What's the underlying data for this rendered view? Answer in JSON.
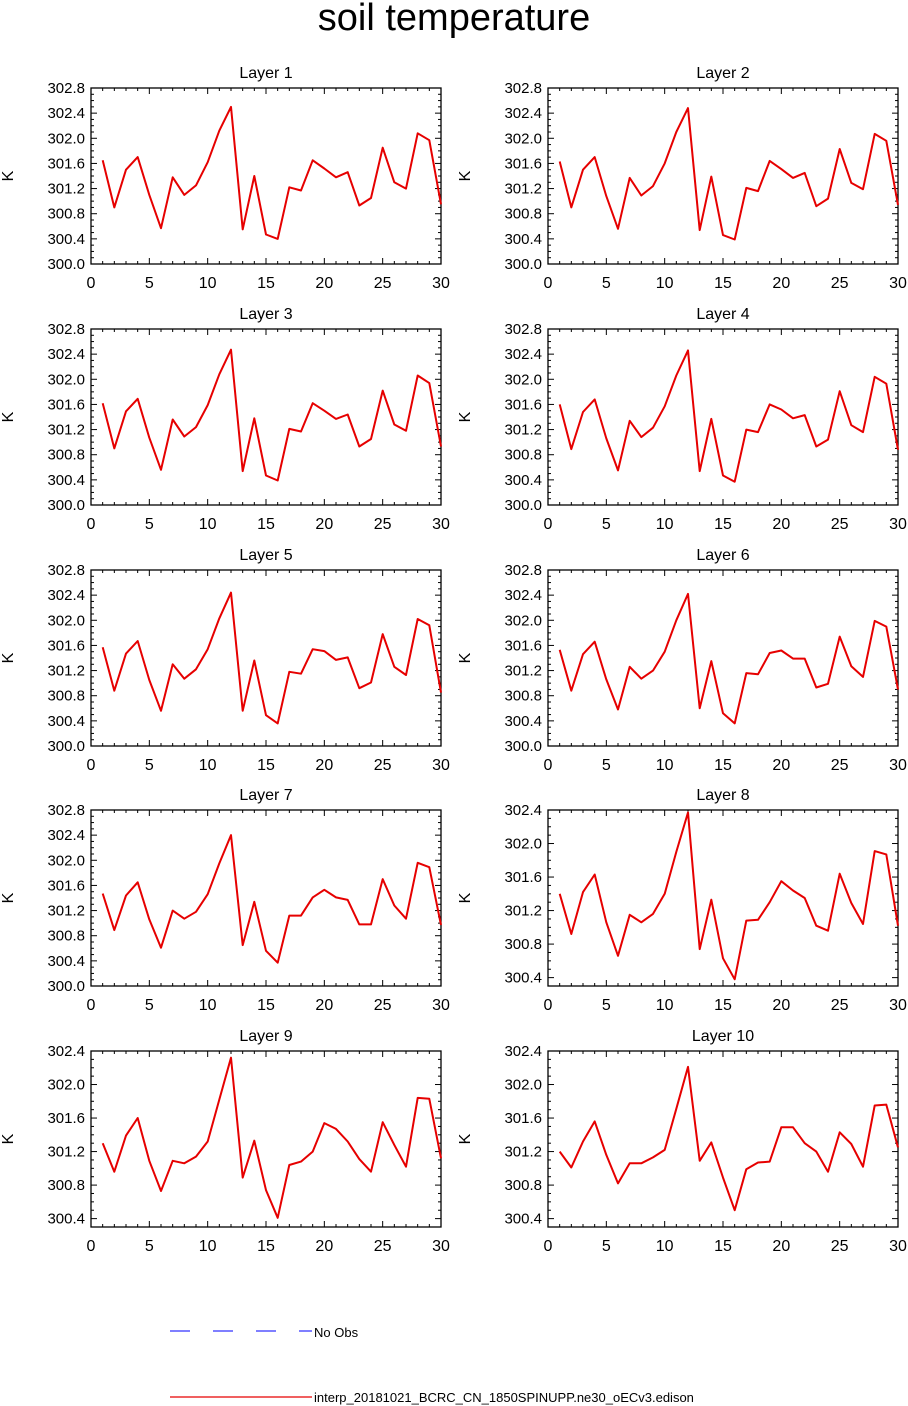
{
  "title": "soil temperature",
  "colors": {
    "model_line": "#e60000",
    "obs_line": "#3333ff",
    "axes": "#000000"
  },
  "legend": {
    "position": "bottom",
    "obs_label": "No Obs",
    "model_label": "interp_20181021_BCRC_CN_1850SPINUPP.ne30_oECv3.edison"
  },
  "chart_data": [
    {
      "type": "line",
      "title": "Layer 1",
      "ylabel": "K",
      "ylim": [
        300.0,
        302.8
      ],
      "yticks": [
        "300.0",
        "300.4",
        "300.8",
        "301.2",
        "301.6",
        "302.0",
        "302.4",
        "302.8"
      ],
      "xlim": [
        0,
        30
      ],
      "xticks": [
        "0",
        "5",
        "10",
        "15",
        "20",
        "25",
        "30"
      ],
      "x": [
        1,
        2,
        3,
        4,
        5,
        6,
        7,
        8,
        9,
        10,
        11,
        12,
        13,
        14,
        15,
        16,
        17,
        18,
        19,
        20,
        21,
        22,
        23,
        24,
        25,
        26,
        27,
        28,
        29,
        30
      ],
      "series": [
        {
          "values": [
            301.65,
            300.9,
            301.5,
            301.7,
            301.1,
            300.57,
            301.38,
            301.1,
            301.25,
            301.62,
            302.12,
            302.5,
            300.55,
            301.4,
            300.47,
            300.4,
            301.22,
            301.17,
            301.65,
            301.52,
            301.38,
            301.46,
            300.93,
            301.05,
            301.85,
            301.3,
            301.2,
            302.08,
            301.97,
            300.95
          ]
        }
      ]
    },
    {
      "type": "line",
      "title": "Layer 2",
      "ylabel": "K",
      "ylim": [
        300.0,
        302.8
      ],
      "yticks": [
        "300.0",
        "300.4",
        "300.8",
        "301.2",
        "301.6",
        "302.0",
        "302.4",
        "302.8"
      ],
      "xlim": [
        0,
        30
      ],
      "xticks": [
        "0",
        "5",
        "10",
        "15",
        "20",
        "25",
        "30"
      ],
      "x": [
        1,
        2,
        3,
        4,
        5,
        6,
        7,
        8,
        9,
        10,
        11,
        12,
        13,
        14,
        15,
        16,
        17,
        18,
        19,
        20,
        21,
        22,
        23,
        24,
        25,
        26,
        27,
        28,
        29,
        30
      ],
      "series": [
        {
          "values": [
            301.63,
            300.9,
            301.5,
            301.7,
            301.08,
            300.56,
            301.37,
            301.09,
            301.24,
            301.6,
            302.1,
            302.48,
            300.54,
            301.39,
            300.46,
            300.39,
            301.21,
            301.16,
            301.64,
            301.51,
            301.37,
            301.45,
            300.92,
            301.04,
            301.83,
            301.29,
            301.19,
            302.07,
            301.96,
            300.94
          ]
        }
      ]
    },
    {
      "type": "line",
      "title": "Layer 3",
      "ylabel": "K",
      "ylim": [
        300.0,
        302.8
      ],
      "yticks": [
        "300.0",
        "300.4",
        "300.8",
        "301.2",
        "301.6",
        "302.0",
        "302.4",
        "302.8"
      ],
      "xlim": [
        0,
        30
      ],
      "xticks": [
        "0",
        "5",
        "10",
        "15",
        "20",
        "25",
        "30"
      ],
      "x": [
        1,
        2,
        3,
        4,
        5,
        6,
        7,
        8,
        9,
        10,
        11,
        12,
        13,
        14,
        15,
        16,
        17,
        18,
        19,
        20,
        21,
        22,
        23,
        24,
        25,
        26,
        27,
        28,
        29,
        30
      ],
      "series": [
        {
          "values": [
            301.62,
            300.9,
            301.49,
            301.69,
            301.07,
            300.56,
            301.36,
            301.09,
            301.24,
            301.59,
            302.08,
            302.47,
            300.54,
            301.38,
            300.47,
            300.39,
            301.21,
            301.17,
            301.62,
            301.5,
            301.37,
            301.44,
            300.93,
            301.05,
            301.82,
            301.28,
            301.18,
            302.06,
            301.94,
            300.93
          ]
        }
      ]
    },
    {
      "type": "line",
      "title": "Layer 4",
      "ylabel": "K",
      "ylim": [
        300.0,
        302.8
      ],
      "yticks": [
        "300.0",
        "300.4",
        "300.8",
        "301.2",
        "301.6",
        "302.0",
        "302.4",
        "302.8"
      ],
      "xlim": [
        0,
        30
      ],
      "xticks": [
        "0",
        "5",
        "10",
        "15",
        "20",
        "25",
        "30"
      ],
      "x": [
        1,
        2,
        3,
        4,
        5,
        6,
        7,
        8,
        9,
        10,
        11,
        12,
        13,
        14,
        15,
        16,
        17,
        18,
        19,
        20,
        21,
        22,
        23,
        24,
        25,
        26,
        27,
        28,
        29,
        30
      ],
      "series": [
        {
          "values": [
            301.6,
            300.89,
            301.48,
            301.68,
            301.06,
            300.55,
            301.34,
            301.08,
            301.23,
            301.57,
            302.06,
            302.46,
            300.54,
            301.37,
            300.47,
            300.37,
            301.2,
            301.16,
            301.6,
            301.52,
            301.38,
            301.43,
            300.93,
            301.04,
            301.81,
            301.27,
            301.16,
            302.04,
            301.93,
            300.88
          ]
        }
      ]
    },
    {
      "type": "line",
      "title": "Layer 5",
      "ylabel": "K",
      "ylim": [
        300.0,
        302.8
      ],
      "yticks": [
        "300.0",
        "300.4",
        "300.8",
        "301.2",
        "301.6",
        "302.0",
        "302.4",
        "302.8"
      ],
      "xlim": [
        0,
        30
      ],
      "xticks": [
        "0",
        "5",
        "10",
        "15",
        "20",
        "25",
        "30"
      ],
      "x": [
        1,
        2,
        3,
        4,
        5,
        6,
        7,
        8,
        9,
        10,
        11,
        12,
        13,
        14,
        15,
        16,
        17,
        18,
        19,
        20,
        21,
        22,
        23,
        24,
        25,
        26,
        27,
        28,
        29,
        30
      ],
      "series": [
        {
          "values": [
            301.57,
            300.88,
            301.47,
            301.67,
            301.05,
            300.56,
            301.3,
            301.07,
            301.22,
            301.54,
            302.03,
            302.44,
            300.56,
            301.36,
            300.49,
            300.36,
            301.18,
            301.15,
            301.54,
            301.51,
            301.37,
            301.41,
            300.92,
            301.01,
            301.78,
            301.26,
            301.13,
            302.02,
            301.92,
            300.85
          ]
        }
      ]
    },
    {
      "type": "line",
      "title": "Layer 6",
      "ylabel": "K",
      "ylim": [
        300.0,
        302.8
      ],
      "yticks": [
        "300.0",
        "300.4",
        "300.8",
        "301.2",
        "301.6",
        "302.0",
        "302.4",
        "302.8"
      ],
      "xlim": [
        0,
        30
      ],
      "xticks": [
        "0",
        "5",
        "10",
        "15",
        "20",
        "25",
        "30"
      ],
      "x": [
        1,
        2,
        3,
        4,
        5,
        6,
        7,
        8,
        9,
        10,
        11,
        12,
        13,
        14,
        15,
        16,
        17,
        18,
        19,
        20,
        21,
        22,
        23,
        24,
        25,
        26,
        27,
        28,
        29,
        30
      ],
      "series": [
        {
          "values": [
            301.53,
            300.88,
            301.46,
            301.66,
            301.06,
            300.58,
            301.26,
            301.07,
            301.2,
            301.5,
            302.0,
            302.42,
            300.6,
            301.35,
            300.52,
            300.36,
            301.16,
            301.14,
            301.48,
            301.52,
            301.39,
            301.39,
            300.93,
            300.99,
            301.74,
            301.27,
            301.1,
            301.99,
            301.9,
            300.9
          ]
        }
      ]
    },
    {
      "type": "line",
      "title": "Layer 7",
      "ylabel": "K",
      "ylim": [
        300.0,
        302.8
      ],
      "yticks": [
        "300.0",
        "300.4",
        "300.8",
        "301.2",
        "301.6",
        "302.0",
        "302.4",
        "302.8"
      ],
      "xlim": [
        0,
        30
      ],
      "xticks": [
        "0",
        "5",
        "10",
        "15",
        "20",
        "25",
        "30"
      ],
      "x": [
        1,
        2,
        3,
        4,
        5,
        6,
        7,
        8,
        9,
        10,
        11,
        12,
        13,
        14,
        15,
        16,
        17,
        18,
        19,
        20,
        21,
        22,
        23,
        24,
        25,
        26,
        27,
        28,
        29,
        30
      ],
      "series": [
        {
          "values": [
            301.47,
            300.89,
            301.44,
            301.65,
            301.06,
            300.61,
            301.2,
            301.07,
            301.18,
            301.46,
            301.95,
            302.4,
            300.65,
            301.34,
            300.56,
            300.37,
            301.12,
            301.12,
            301.41,
            301.53,
            301.41,
            301.37,
            300.98,
            300.98,
            301.7,
            301.28,
            301.07,
            301.96,
            301.89,
            300.97
          ]
        }
      ]
    },
    {
      "type": "line",
      "title": "Layer 8",
      "ylabel": "K",
      "ylim": [
        300.3,
        302.4
      ],
      "yticks": [
        "300.4",
        "300.8",
        "301.2",
        "301.6",
        "302.0",
        "302.4"
      ],
      "xlim": [
        0,
        30
      ],
      "xticks": [
        "0",
        "5",
        "10",
        "15",
        "20",
        "25",
        "30"
      ],
      "x": [
        1,
        2,
        3,
        4,
        5,
        6,
        7,
        8,
        9,
        10,
        11,
        12,
        13,
        14,
        15,
        16,
        17,
        18,
        19,
        20,
        21,
        22,
        23,
        24,
        25,
        26,
        27,
        28,
        29,
        30
      ],
      "series": [
        {
          "values": [
            301.4,
            300.92,
            301.42,
            301.63,
            301.06,
            300.66,
            301.15,
            301.06,
            301.16,
            301.4,
            301.9,
            302.37,
            300.74,
            301.33,
            300.63,
            300.38,
            301.08,
            301.09,
            301.3,
            301.55,
            301.44,
            301.35,
            301.02,
            300.96,
            301.64,
            301.29,
            301.04,
            301.91,
            301.87,
            301.02
          ]
        }
      ]
    },
    {
      "type": "line",
      "title": "Layer 9",
      "ylabel": "K",
      "ylim": [
        300.3,
        302.4
      ],
      "yticks": [
        "300.4",
        "300.8",
        "301.2",
        "301.6",
        "302.0",
        "302.4"
      ],
      "xlim": [
        0,
        30
      ],
      "xticks": [
        "0",
        "5",
        "10",
        "15",
        "20",
        "25",
        "30"
      ],
      "x": [
        1,
        2,
        3,
        4,
        5,
        6,
        7,
        8,
        9,
        10,
        11,
        12,
        13,
        14,
        15,
        16,
        17,
        18,
        19,
        20,
        21,
        22,
        23,
        24,
        25,
        26,
        27,
        28,
        29,
        30
      ],
      "series": [
        {
          "values": [
            301.3,
            300.96,
            301.39,
            301.6,
            301.09,
            300.73,
            301.09,
            301.06,
            301.14,
            301.32,
            301.82,
            302.32,
            300.89,
            301.33,
            300.74,
            300.41,
            301.04,
            301.08,
            301.2,
            301.54,
            301.47,
            301.32,
            301.11,
            300.96,
            301.55,
            301.28,
            301.02,
            301.84,
            301.83,
            301.12
          ]
        }
      ]
    },
    {
      "type": "line",
      "title": "Layer 10",
      "ylabel": "K",
      "ylim": [
        300.3,
        302.4
      ],
      "yticks": [
        "300.4",
        "300.8",
        "301.2",
        "301.6",
        "302.0",
        "302.4"
      ],
      "xlim": [
        0,
        30
      ],
      "xticks": [
        "0",
        "5",
        "10",
        "15",
        "20",
        "25",
        "30"
      ],
      "x": [
        1,
        2,
        3,
        4,
        5,
        6,
        7,
        8,
        9,
        10,
        11,
        12,
        13,
        14,
        15,
        16,
        17,
        18,
        19,
        20,
        21,
        22,
        23,
        24,
        25,
        26,
        27,
        28,
        29,
        30
      ],
      "series": [
        {
          "values": [
            301.2,
            301.01,
            301.32,
            301.56,
            301.16,
            300.82,
            301.06,
            301.06,
            301.13,
            301.22,
            301.71,
            302.21,
            301.09,
            301.31,
            300.89,
            300.5,
            300.99,
            301.07,
            301.08,
            301.49,
            301.49,
            301.3,
            301.2,
            300.96,
            301.43,
            301.29,
            301.02,
            301.75,
            301.76,
            301.25
          ]
        }
      ]
    }
  ]
}
